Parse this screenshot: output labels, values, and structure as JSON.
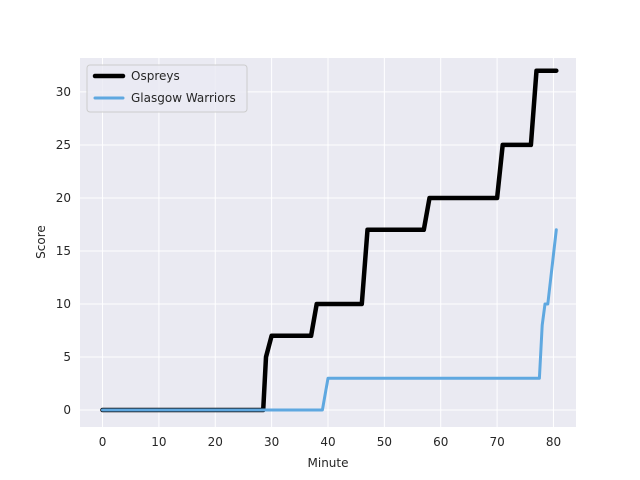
{
  "chart_data": {
    "type": "line",
    "title": "",
    "xlabel": "Minute",
    "ylabel": "Score",
    "xlim": [
      -4,
      84
    ],
    "ylim": [
      -1.6,
      33.2
    ],
    "xticks": [
      0,
      10,
      20,
      30,
      40,
      50,
      60,
      70,
      80
    ],
    "yticks": [
      0,
      5,
      10,
      15,
      20,
      25,
      30
    ],
    "grid": true,
    "legend_position": "top-left",
    "background_color": "#eaeaf2",
    "grid_color": "#ffffff",
    "series": [
      {
        "name": "Ospreys",
        "color": "#000000",
        "width": 4.5,
        "x": [
          0,
          28,
          28.5,
          29,
          30,
          37,
          38,
          46,
          47,
          57,
          58,
          70,
          71,
          76,
          77,
          80.5
        ],
        "y": [
          0,
          0,
          0,
          5,
          7,
          7,
          10,
          10,
          17,
          17,
          20,
          20,
          25,
          25,
          32,
          32
        ]
      },
      {
        "name": "Glasgow Warriors",
        "color": "#5fa8e0",
        "width": 3,
        "x": [
          0,
          39,
          40,
          77.5,
          78,
          78.5,
          79,
          80.5
        ],
        "y": [
          0,
          0,
          3,
          3,
          8,
          10,
          10,
          17
        ]
      }
    ]
  }
}
